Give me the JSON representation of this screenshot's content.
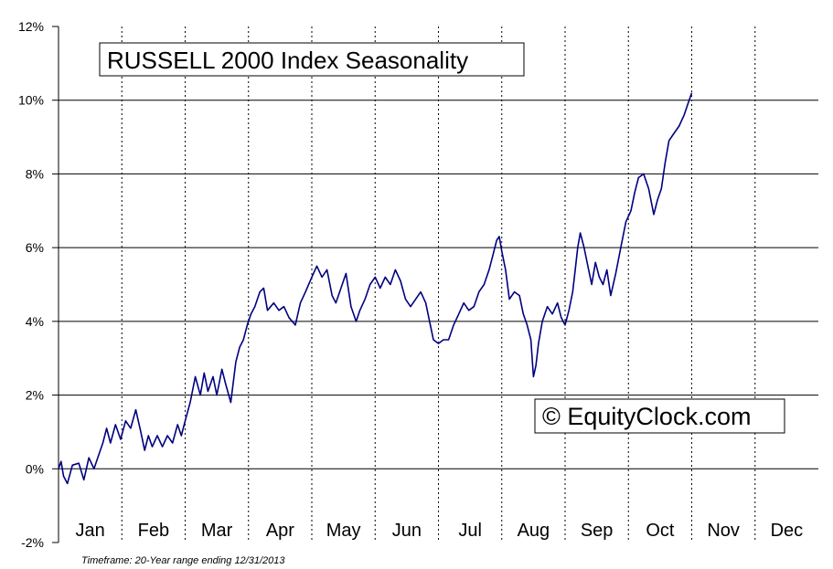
{
  "chart_data": {
    "type": "line",
    "title": "RUSSELL 2000 Index Seasonality",
    "watermark": "© EquityClock.com",
    "footnote": "Timeframe: 20-Year range ending 12/31/2013",
    "xlabel": "",
    "ylabel": "",
    "ylim": [
      -2,
      12
    ],
    "y_ticks": [
      "12%",
      "10%",
      "8%",
      "6%",
      "4%",
      "2%",
      "0%",
      "-2%"
    ],
    "months": [
      "Jan",
      "Feb",
      "Mar",
      "Apr",
      "May",
      "Jun",
      "Jul",
      "Aug",
      "Sep",
      "Oct",
      "Nov",
      "Dec"
    ],
    "grid": "horizontal solid at each 2%, vertical dotted at month boundaries",
    "line_color": "#000080",
    "series": [
      {
        "values": [
          [
            0.0,
            0.0
          ],
          [
            0.04,
            0.2
          ],
          [
            0.08,
            -0.2
          ],
          [
            0.14,
            -0.4
          ],
          [
            0.22,
            0.1
          ],
          [
            0.32,
            0.15
          ],
          [
            0.4,
            -0.3
          ],
          [
            0.48,
            0.3
          ],
          [
            0.56,
            0.0
          ],
          [
            0.64,
            0.4
          ],
          [
            0.7,
            0.7
          ],
          [
            0.76,
            1.1
          ],
          [
            0.82,
            0.7
          ],
          [
            0.9,
            1.2
          ],
          [
            0.98,
            0.8
          ],
          [
            1.06,
            1.3
          ],
          [
            1.14,
            1.1
          ],
          [
            1.22,
            1.6
          ],
          [
            1.3,
            1.0
          ],
          [
            1.36,
            0.5
          ],
          [
            1.42,
            0.9
          ],
          [
            1.48,
            0.6
          ],
          [
            1.56,
            0.9
          ],
          [
            1.64,
            0.6
          ],
          [
            1.72,
            0.9
          ],
          [
            1.8,
            0.7
          ],
          [
            1.88,
            1.2
          ],
          [
            1.94,
            0.9
          ],
          [
            2.0,
            1.3
          ],
          [
            2.08,
            1.8
          ],
          [
            2.16,
            2.5
          ],
          [
            2.24,
            2.0
          ],
          [
            2.3,
            2.6
          ],
          [
            2.36,
            2.1
          ],
          [
            2.44,
            2.5
          ],
          [
            2.5,
            2.0
          ],
          [
            2.58,
            2.7
          ],
          [
            2.64,
            2.3
          ],
          [
            2.72,
            1.8
          ],
          [
            2.8,
            2.9
          ],
          [
            2.86,
            3.3
          ],
          [
            2.92,
            3.5
          ],
          [
            2.98,
            3.9
          ],
          [
            3.04,
            4.2
          ],
          [
            3.1,
            4.4
          ],
          [
            3.18,
            4.8
          ],
          [
            3.24,
            4.9
          ],
          [
            3.3,
            4.3
          ],
          [
            3.4,
            4.5
          ],
          [
            3.48,
            4.3
          ],
          [
            3.56,
            4.4
          ],
          [
            3.64,
            4.1
          ],
          [
            3.74,
            3.9
          ],
          [
            3.82,
            4.5
          ],
          [
            3.9,
            4.8
          ],
          [
            4.0,
            5.2
          ],
          [
            4.08,
            5.5
          ],
          [
            4.16,
            5.2
          ],
          [
            4.24,
            5.4
          ],
          [
            4.32,
            4.7
          ],
          [
            4.38,
            4.5
          ],
          [
            4.46,
            4.9
          ],
          [
            4.54,
            5.3
          ],
          [
            4.62,
            4.4
          ],
          [
            4.7,
            4.0
          ],
          [
            4.76,
            4.3
          ],
          [
            4.84,
            4.6
          ],
          [
            4.92,
            5.0
          ],
          [
            5.0,
            5.2
          ],
          [
            5.08,
            4.9
          ],
          [
            5.16,
            5.2
          ],
          [
            5.24,
            5.0
          ],
          [
            5.32,
            5.4
          ],
          [
            5.4,
            5.1
          ],
          [
            5.48,
            4.6
          ],
          [
            5.56,
            4.4
          ],
          [
            5.64,
            4.6
          ],
          [
            5.72,
            4.8
          ],
          [
            5.8,
            4.5
          ],
          [
            5.86,
            4.0
          ],
          [
            5.92,
            3.5
          ],
          [
            6.0,
            3.4
          ],
          [
            6.08,
            3.5
          ],
          [
            6.16,
            3.5
          ],
          [
            6.24,
            3.9
          ],
          [
            6.32,
            4.2
          ],
          [
            6.4,
            4.5
          ],
          [
            6.48,
            4.3
          ],
          [
            6.56,
            4.4
          ],
          [
            6.64,
            4.8
          ],
          [
            6.72,
            5.0
          ],
          [
            6.8,
            5.4
          ],
          [
            6.86,
            5.8
          ],
          [
            6.92,
            6.2
          ],
          [
            6.96,
            6.3
          ],
          [
            7.0,
            5.9
          ],
          [
            7.06,
            5.4
          ],
          [
            7.12,
            4.6
          ],
          [
            7.2,
            4.8
          ],
          [
            7.28,
            4.7
          ],
          [
            7.34,
            4.2
          ],
          [
            7.4,
            3.9
          ],
          [
            7.46,
            3.5
          ],
          [
            7.5,
            2.5
          ],
          [
            7.54,
            2.8
          ],
          [
            7.58,
            3.4
          ],
          [
            7.64,
            4.0
          ],
          [
            7.72,
            4.4
          ],
          [
            7.8,
            4.2
          ],
          [
            7.88,
            4.5
          ],
          [
            7.94,
            4.1
          ],
          [
            8.0,
            3.9
          ],
          [
            8.06,
            4.3
          ],
          [
            8.12,
            4.8
          ],
          [
            8.16,
            5.4
          ],
          [
            8.2,
            6.0
          ],
          [
            8.24,
            6.4
          ],
          [
            8.3,
            6.0
          ],
          [
            8.36,
            5.5
          ],
          [
            8.42,
            5.0
          ],
          [
            8.48,
            5.6
          ],
          [
            8.54,
            5.2
          ],
          [
            8.6,
            5.0
          ],
          [
            8.66,
            5.4
          ],
          [
            8.72,
            4.7
          ],
          [
            8.8,
            5.3
          ],
          [
            8.88,
            6.0
          ],
          [
            8.96,
            6.7
          ],
          [
            9.04,
            7.0
          ],
          [
            9.1,
            7.5
          ],
          [
            9.16,
            7.9
          ],
          [
            9.24,
            8.0
          ],
          [
            9.32,
            7.6
          ],
          [
            9.4,
            6.9
          ],
          [
            9.46,
            7.3
          ],
          [
            9.52,
            7.6
          ],
          [
            9.58,
            8.3
          ],
          [
            9.64,
            8.9
          ],
          [
            9.72,
            9.1
          ],
          [
            9.8,
            9.3
          ],
          [
            9.88,
            9.6
          ],
          [
            9.94,
            9.9
          ],
          [
            10.0,
            10.2
          ]
        ]
      }
    ]
  }
}
